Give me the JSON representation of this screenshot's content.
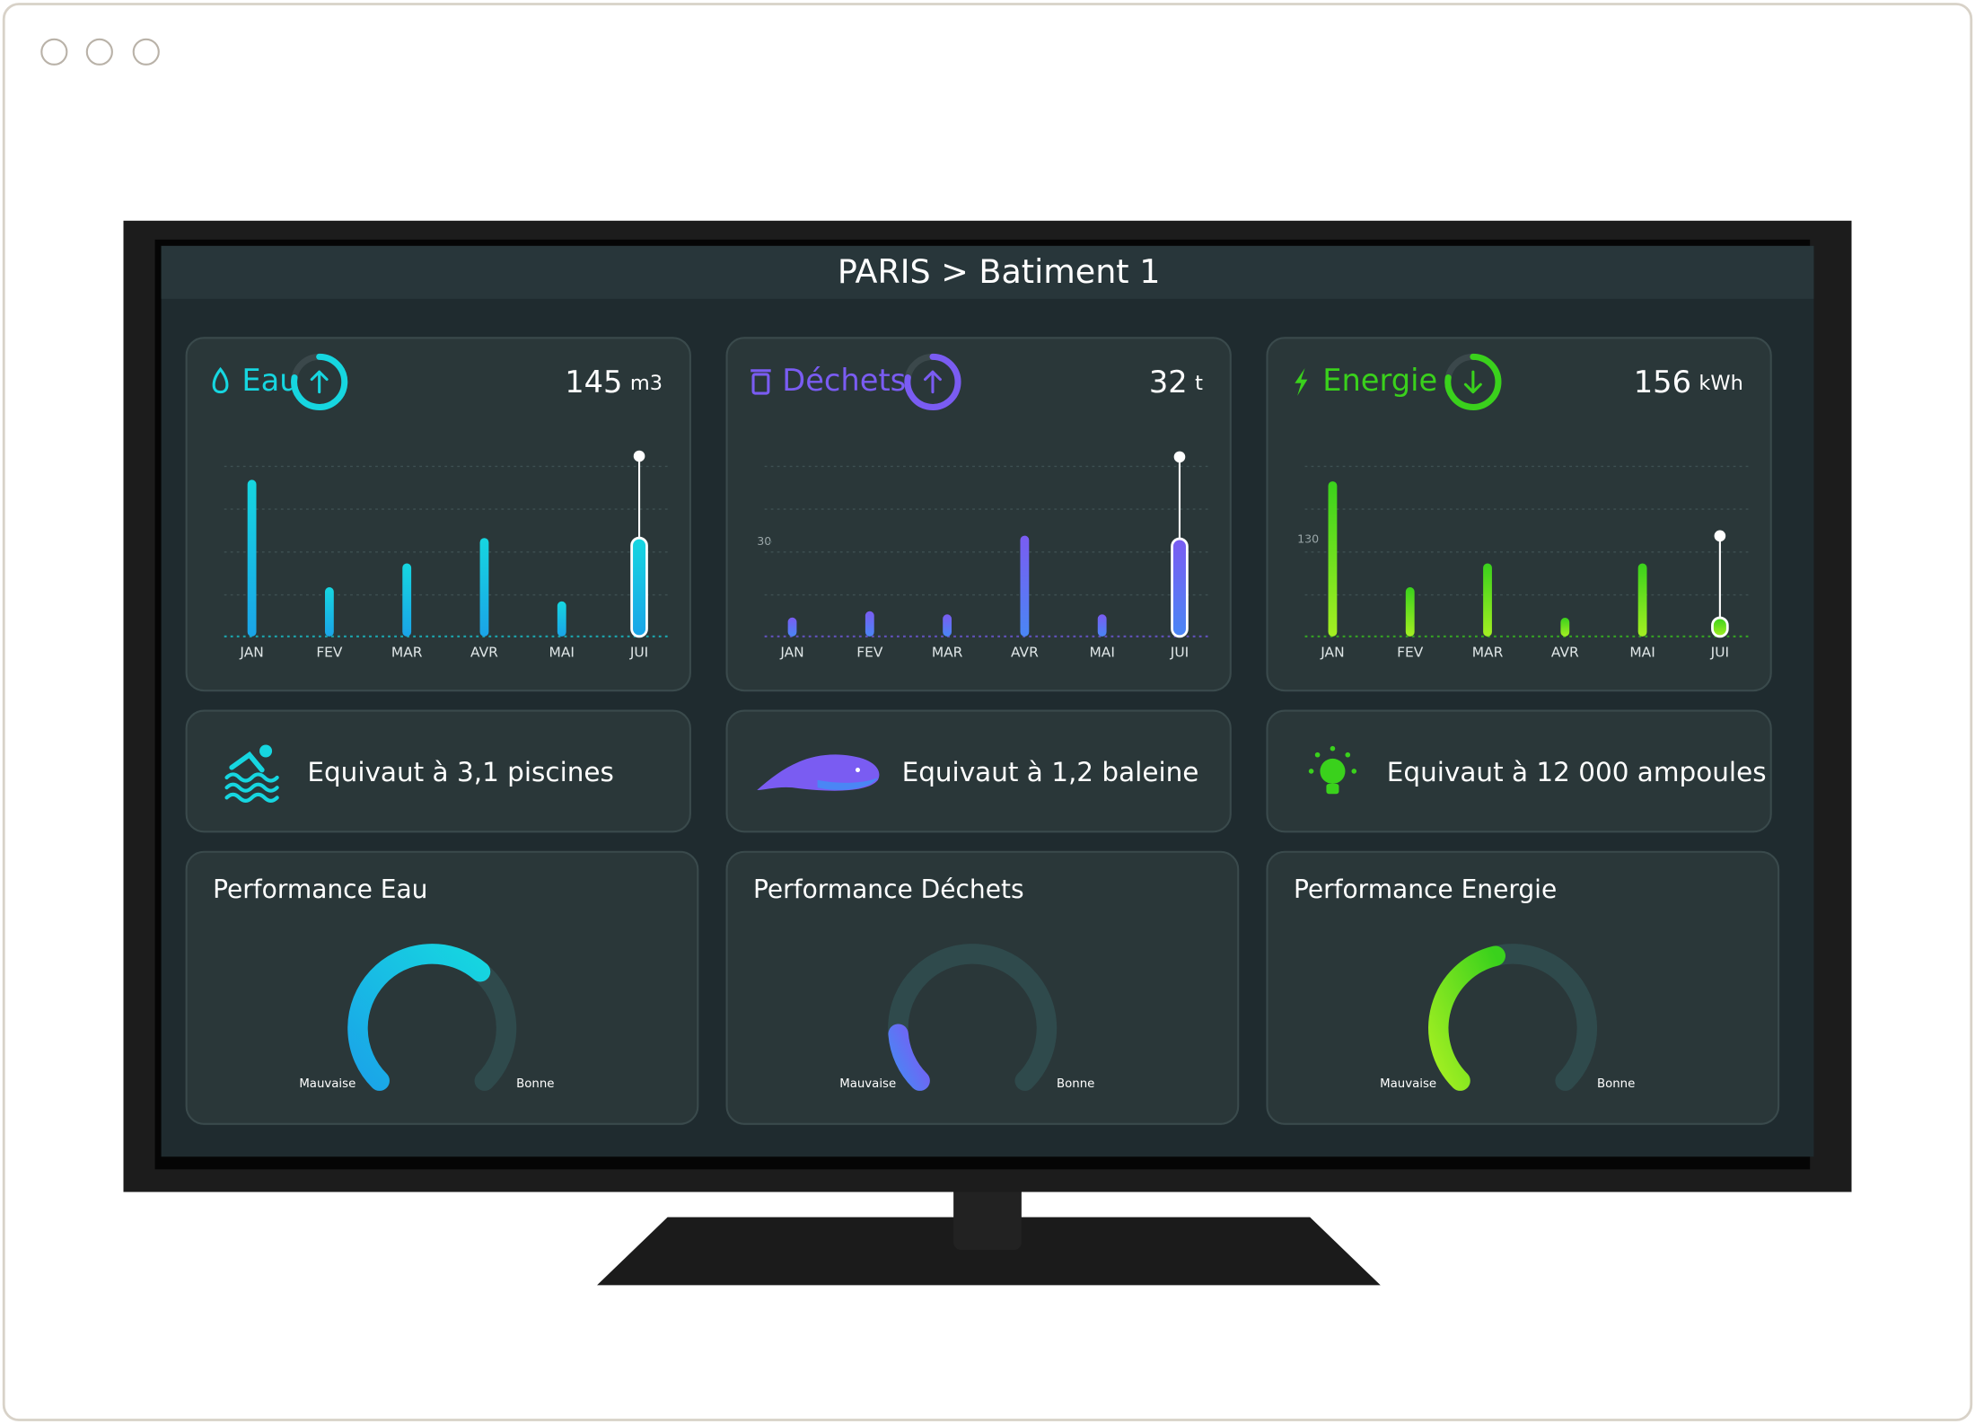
{
  "header": {
    "title": "PARIS > Batiment 1"
  },
  "panels": [
    {
      "label": "Eau",
      "total": 145,
      "unit": "m3",
      "trend": "up",
      "color": "#16d6e0",
      "color2": "#1aa4e8",
      "chart": {
        "type": "bar",
        "categories": [
          "JAN",
          "FEV",
          "MAR",
          "AVR",
          "MAI",
          "JUI"
        ],
        "values": [
          210,
          66,
          98,
          132,
          47,
          132
        ],
        "ylim": [
          0,
          245
        ]
      },
      "equivalent": "Equivaut à 3,1 piscines",
      "performance": {
        "title": "Performance Eau",
        "value": 65,
        "range": [
          0,
          100
        ],
        "min_label": "Mauvaise",
        "max_label": "Bonne"
      }
    },
    {
      "label": "Déchets",
      "total": 32,
      "unit": "t",
      "trend": "up",
      "color": "#7a5cf2",
      "color2": "#4a86f5",
      "chart": {
        "type": "bar",
        "categories": [
          "JAN",
          "FEV",
          "MAR",
          "AVR",
          "MAI",
          "JUI"
        ],
        "values": [
          6,
          8,
          7,
          32,
          7,
          31
        ],
        "ylim": [
          0,
          58
        ],
        "yticks": [
          30
        ]
      },
      "equivalent": "Equivaut à 1,2 baleine",
      "performance": {
        "title": "Performance Déchets",
        "value": 15,
        "range": [
          0,
          100
        ],
        "min_label": "Mauvaise",
        "max_label": "Bonne"
      }
    },
    {
      "label": "Energie",
      "total": 156,
      "unit": "kWh",
      "trend": "down",
      "color": "#3ad11c",
      "color2": "#a4ef22",
      "chart": {
        "type": "bar",
        "categories": [
          "JAN",
          "FEV",
          "MAR",
          "AVR",
          "MAI",
          "JUI"
        ],
        "values": [
          208,
          66,
          98,
          25,
          98,
          25
        ],
        "ylim": [
          0,
          245
        ],
        "yticks": [
          130
        ]
      },
      "equivalent": "Equivaut à 12 000 ampoules",
      "performance": {
        "title": "Performance Energie",
        "value": 45,
        "range": [
          0,
          100
        ],
        "min_label": "Mauvaise",
        "max_label": "Bonne"
      }
    }
  ]
}
